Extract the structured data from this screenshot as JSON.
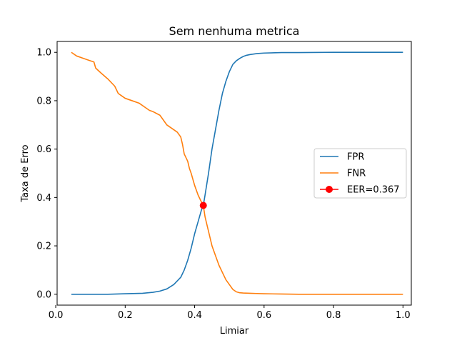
{
  "chart_data": {
    "type": "line",
    "title": "Sem nenhuma metrica",
    "xlabel": "Limiar",
    "ylabel": "Taxa de Erro",
    "xlim": [
      0.0,
      1.0
    ],
    "ylim": [
      0.0,
      1.0
    ],
    "xticks": [
      "0.0",
      "0.2",
      "0.4",
      "0.6",
      "0.8",
      "1.0"
    ],
    "yticks": [
      "0.0",
      "0.2",
      "0.4",
      "0.6",
      "0.8",
      "1.0"
    ],
    "grid": false,
    "legend_position": "center-right",
    "series": [
      {
        "name": "FPR",
        "color": "#1f77b4",
        "x": [
          0.045,
          0.1,
          0.15,
          0.2,
          0.25,
          0.28,
          0.3,
          0.32,
          0.34,
          0.36,
          0.37,
          0.38,
          0.39,
          0.4,
          0.41,
          0.42,
          0.425,
          0.43,
          0.44,
          0.45,
          0.46,
          0.47,
          0.48,
          0.49,
          0.5,
          0.51,
          0.52,
          0.53,
          0.54,
          0.55,
          0.56,
          0.58,
          0.6,
          0.65,
          0.7,
          0.8,
          0.9,
          1.0
        ],
        "y": [
          0.0,
          0.0,
          0.0,
          0.002,
          0.004,
          0.008,
          0.013,
          0.022,
          0.04,
          0.07,
          0.1,
          0.14,
          0.19,
          0.25,
          0.3,
          0.35,
          0.367,
          0.41,
          0.5,
          0.6,
          0.68,
          0.76,
          0.83,
          0.88,
          0.92,
          0.95,
          0.965,
          0.975,
          0.983,
          0.988,
          0.991,
          0.995,
          0.997,
          0.999,
          0.999,
          1.0,
          1.0,
          1.0
        ]
      },
      {
        "name": "FNR",
        "color": "#ff7f0e",
        "x": [
          0.045,
          0.06,
          0.08,
          0.1,
          0.11,
          0.115,
          0.13,
          0.15,
          0.17,
          0.18,
          0.19,
          0.2,
          0.22,
          0.24,
          0.26,
          0.27,
          0.28,
          0.3,
          0.31,
          0.32,
          0.34,
          0.35,
          0.36,
          0.365,
          0.37,
          0.38,
          0.385,
          0.39,
          0.4,
          0.41,
          0.42,
          0.425,
          0.43,
          0.44,
          0.45,
          0.46,
          0.47,
          0.48,
          0.49,
          0.5,
          0.51,
          0.52,
          0.53,
          0.54,
          0.56,
          0.58,
          0.6,
          0.65,
          0.7,
          0.8,
          0.9,
          1.0
        ],
        "y": [
          1.0,
          0.985,
          0.975,
          0.965,
          0.96,
          0.935,
          0.915,
          0.89,
          0.86,
          0.83,
          0.82,
          0.81,
          0.8,
          0.79,
          0.77,
          0.76,
          0.755,
          0.74,
          0.72,
          0.7,
          0.68,
          0.67,
          0.65,
          0.62,
          0.58,
          0.55,
          0.52,
          0.5,
          0.45,
          0.41,
          0.38,
          0.367,
          0.32,
          0.26,
          0.2,
          0.16,
          0.12,
          0.09,
          0.06,
          0.04,
          0.02,
          0.01,
          0.006,
          0.005,
          0.004,
          0.003,
          0.002,
          0.001,
          0.0,
          0.0,
          0.0,
          0.0
        ]
      },
      {
        "name": "EER=0.367",
        "color": "#ff0000",
        "marker": "circle",
        "x": [
          0.425
        ],
        "y": [
          0.367
        ]
      }
    ]
  }
}
